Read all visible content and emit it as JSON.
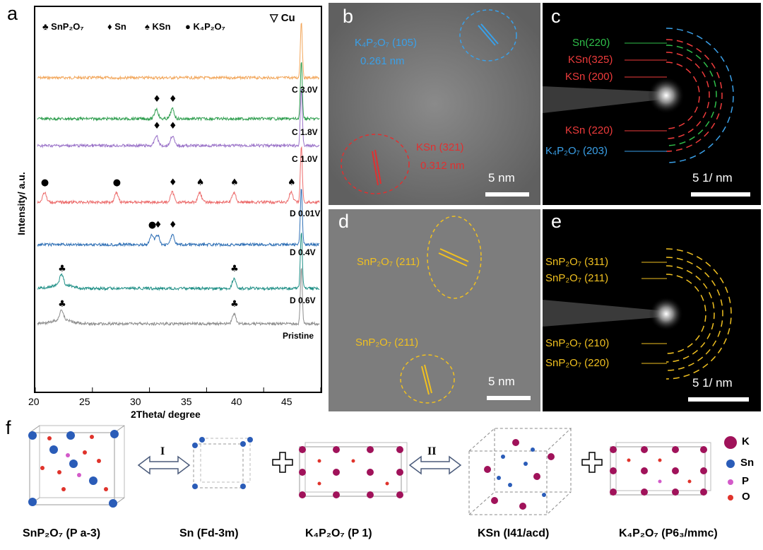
{
  "panels": {
    "a": "a",
    "b": "b",
    "c": "c",
    "d": "d",
    "e": "e",
    "f": "f"
  },
  "xrd": {
    "legend": [
      {
        "symbol": "♣",
        "label": "SnP₂O₇"
      },
      {
        "symbol": "♦",
        "label": "Sn"
      },
      {
        "symbol": "♠",
        "label": "KSn"
      },
      {
        "symbol": "●",
        "label": "K₄P₂O₇"
      }
    ],
    "cu_symbol": "▽",
    "cu_label": "Cu",
    "xlabel": "2Theta/ degree",
    "ylabel": "Intensity/ a.u.",
    "xticks": [
      "20",
      "25",
      "30",
      "35",
      "40",
      "45"
    ],
    "traces": [
      {
        "label": "C 3.0V",
        "color": "#f2a65a"
      },
      {
        "label": "C 1.8V",
        "color": "#2f9e4f"
      },
      {
        "label": "C 1.0V",
        "color": "#9a72c8"
      },
      {
        "label": "D 0.01V",
        "color": "#ec6b6b"
      },
      {
        "label": "D 0.4V",
        "color": "#2e6fb5"
      },
      {
        "label": "D 0.6V",
        "color": "#1f8f86"
      },
      {
        "label": "Pristine",
        "color": "#8c8c8c"
      }
    ]
  },
  "chart_data": {
    "type": "line",
    "xlabel": "2Theta/ degree",
    "ylabel": "Intensity/ a.u.",
    "xlim": [
      20,
      45
    ],
    "series": [
      {
        "name": "C 3.0V",
        "peaks": [
          43.3
        ]
      },
      {
        "name": "C 1.8V",
        "peaks": [
          30.6,
          32.0,
          43.3
        ]
      },
      {
        "name": "C 1.0V",
        "peaks": [
          30.6,
          32.0,
          43.3
        ]
      },
      {
        "name": "D 0.01V",
        "peaks": [
          20.8,
          27.1,
          32.0,
          34.4,
          37.4,
          42.4,
          43.3
        ]
      },
      {
        "name": "D 0.4V",
        "peaks": [
          30.2,
          30.7,
          32.0,
          43.3
        ]
      },
      {
        "name": "D 0.6V",
        "peaks": [
          22.3,
          37.4,
          43.3
        ]
      },
      {
        "name": "Pristine",
        "peaks": [
          22.3,
          37.4,
          43.3
        ]
      }
    ]
  },
  "tem_b": {
    "label1_line1": "K₄P₂O₇ (105)",
    "label1_line2": "0.261 nm",
    "label2_line1": "KSn (321)",
    "label2_line2": "0.312 nm",
    "scale": "5 nm"
  },
  "saed_c": {
    "labels": [
      {
        "text": "Sn(220)",
        "color": "#2fbf4a"
      },
      {
        "text": "KSn(325)",
        "color": "#ee3b3b"
      },
      {
        "text": "KSn (200)",
        "color": "#ee3b3b"
      },
      {
        "text": "KSn (220)",
        "color": "#ee3b3b"
      },
      {
        "text": "K₄P₂O₇ (203)",
        "color": "#3aa0e8"
      }
    ],
    "scale": "5 1/ nm"
  },
  "tem_d": {
    "label1": "SnP₂O₇ (211)",
    "label2": "SnP₂O₇ (211)",
    "scale": "5 nm"
  },
  "saed_e": {
    "labels": [
      "SnP₂O₇ (311)",
      "SnP₂O₇ (211)",
      "SnP₂O₇ (210)",
      "SnP₂O₇ (220)"
    ],
    "scale": "5 1/ nm"
  },
  "structures": {
    "names": [
      "SnP₂O₇ (P a-3)",
      "Sn (Fd-3m)",
      "K₄P₂O₇ (P 1)",
      "KSn (I41/acd)",
      "K₄P₂O₇ (P6₃/mmc)"
    ],
    "step1": "I",
    "step2": "II",
    "legend": [
      {
        "label": "K",
        "color": "#a0125a"
      },
      {
        "label": "Sn",
        "color": "#2a5cb8"
      },
      {
        "label": "P",
        "color": "#d35ac9"
      },
      {
        "label": "O",
        "color": "#e0332b"
      }
    ]
  }
}
